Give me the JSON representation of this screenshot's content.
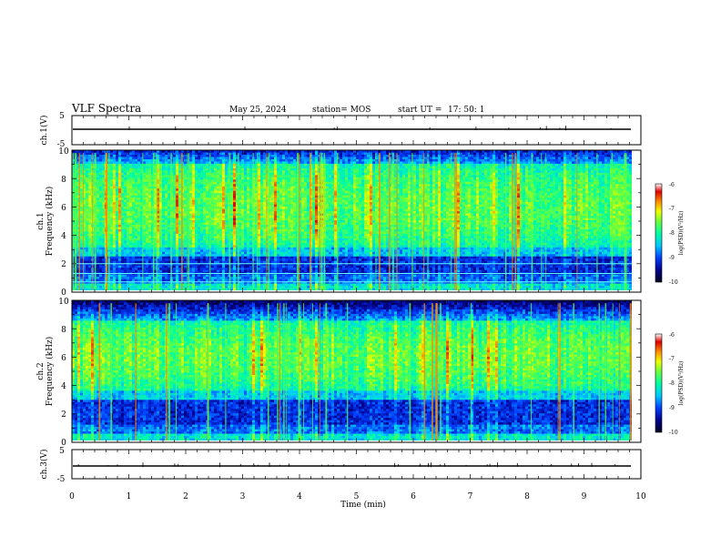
{
  "header": {
    "title": "VLF Spectra",
    "date": "May 25, 2024",
    "station": "station= MOS",
    "start_label": "start  UT  =",
    "start_time": "17: 50: 1"
  },
  "colors": {
    "spectrogram_scale": [
      "#000020",
      "#00008b",
      "#0040ff",
      "#00c8ff",
      "#00ff9f",
      "#6eff38",
      "#f0ff00",
      "#ff8c00",
      "#e00000",
      "#ffffff"
    ],
    "waveform_line": "#000000",
    "horizontal_lines": "#64ffff"
  },
  "chart_data": [
    {
      "type": "line",
      "name": "ch1-waveform",
      "ylabel": "ch.1(V)",
      "ylim": [
        -5,
        5
      ],
      "yticks": [
        "5",
        "-5"
      ],
      "baseline": 0,
      "xlim": [
        0,
        10
      ]
    },
    {
      "type": "heatmap",
      "name": "ch1-spectrogram",
      "ylabel_line1": "ch.1",
      "ylabel_line2": "Frequency (kHz)",
      "ylim": [
        0,
        10
      ],
      "yticks": [
        "0",
        "2",
        "4",
        "6",
        "8",
        "10"
      ],
      "xlim": [
        0,
        10
      ],
      "intensity_band_khz": [
        3,
        9
      ],
      "horizontal_lines_khz": [
        0.6,
        1.2,
        1.9
      ],
      "colorbar": {
        "label": "log(PSD)(V²/Hz)",
        "range": [
          -10,
          -6
        ],
        "ticks": [
          "-6",
          "-7",
          "-8",
          "-9",
          "-10"
        ]
      }
    },
    {
      "type": "heatmap",
      "name": "ch2-spectrogram",
      "ylabel_line1": "ch.2",
      "ylabel_line2": "Frequency (kHz)",
      "ylim": [
        0,
        10
      ],
      "yticks": [
        "0",
        "2",
        "4",
        "6",
        "8",
        "10"
      ],
      "xlim": [
        0,
        10
      ],
      "intensity_band_khz": [
        3.5,
        8.5
      ],
      "colorbar": {
        "label": "log(PSD)(V²/Hz)",
        "range": [
          -10,
          -6
        ],
        "ticks": [
          "-6",
          "-7",
          "-8",
          "-9",
          "-10"
        ]
      }
    },
    {
      "type": "line",
      "name": "ch3-waveform",
      "ylabel": "ch.3(V)",
      "ylim": [
        -5,
        5
      ],
      "yticks": [
        "5",
        "-5"
      ],
      "baseline": 0,
      "xlim": [
        0,
        10
      ],
      "xlabel": "Time  (min)",
      "xticks": [
        "0",
        "1",
        "2",
        "3",
        "4",
        "5",
        "6",
        "7",
        "8",
        "9",
        "10"
      ]
    }
  ]
}
